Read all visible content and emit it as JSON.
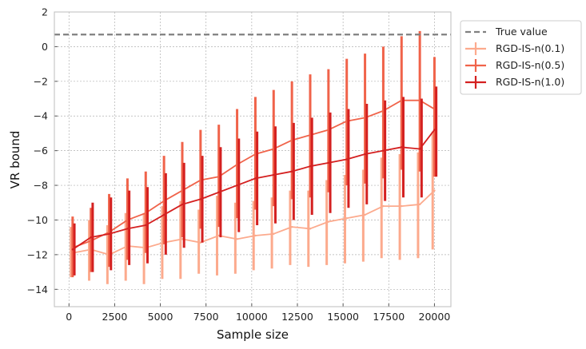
{
  "chart_data": {
    "type": "line",
    "title": "",
    "xlabel": "Sample size",
    "ylabel": "VR bound",
    "xlim": [
      -800,
      20900
    ],
    "ylim": [
      -15,
      2
    ],
    "xticks": [
      0,
      2500,
      5000,
      7500,
      10000,
      12500,
      15000,
      17500,
      20000
    ],
    "xtick_labels": [
      "0",
      "2500",
      "5000",
      "7500",
      "10000",
      "12500",
      "15000",
      "17500",
      "20000"
    ],
    "yticks": [
      -14,
      -12,
      -10,
      -8,
      -6,
      -4,
      -2,
      0,
      2
    ],
    "ytick_labels": [
      "−14",
      "−12",
      "−10",
      "−8",
      "−6",
      "−4",
      "−2",
      "0",
      "2"
    ],
    "grid": true,
    "legend_position": "outside-top-right",
    "reference_line": {
      "name": "True value",
      "y": 0.7,
      "color": "#808080",
      "style": "dashed"
    },
    "x": [
      200,
      1200,
      2200,
      3200,
      4200,
      5200,
      6200,
      7200,
      8200,
      9200,
      10200,
      11200,
      12200,
      13200,
      14200,
      15200,
      16200,
      17200,
      18200,
      19200,
      20000
    ],
    "series": [
      {
        "name": "RGD-IS-n(0.1)",
        "color": "#fcaa8d",
        "values": [
          -11.9,
          -11.7,
          -12.0,
          -11.5,
          -11.6,
          -11.3,
          -11.1,
          -11.3,
          -10.9,
          -11.1,
          -10.9,
          -10.8,
          -10.4,
          -10.5,
          -10.1,
          -9.9,
          -9.7,
          -9.2,
          -9.2,
          -9.1,
          -8.3
        ],
        "lower": [
          -13.3,
          -13.5,
          -13.7,
          -13.5,
          -13.7,
          -13.4,
          -13.4,
          -13.1,
          -13.2,
          -13.1,
          -12.9,
          -12.8,
          -12.6,
          -12.7,
          -12.6,
          -12.5,
          -12.4,
          -12.2,
          -12.3,
          -12.2,
          -11.7
        ],
        "upper": [
          -10.4,
          -10.0,
          -10.3,
          -9.6,
          -9.6,
          -9.2,
          -8.9,
          -9.4,
          -8.6,
          -9.0,
          -8.9,
          -8.7,
          -8.3,
          -8.3,
          -7.7,
          -7.4,
          -7.1,
          -6.4,
          -6.2,
          -6.1,
          -4.9
        ]
      },
      {
        "name": "RGD-IS-n(0.5)",
        "color": "#f0634a",
        "values": [
          -11.6,
          -11.2,
          -10.7,
          -10.0,
          -9.6,
          -8.9,
          -8.3,
          -7.7,
          -7.5,
          -6.8,
          -6.2,
          -5.9,
          -5.4,
          -5.1,
          -4.8,
          -4.3,
          -4.1,
          -3.7,
          -3.1,
          -3.1,
          -3.6
        ],
        "lower": [
          -13.3,
          -13.0,
          -12.7,
          -12.3,
          -11.9,
          -11.4,
          -11.0,
          -10.5,
          -10.4,
          -9.9,
          -9.4,
          -9.2,
          -8.8,
          -8.7,
          -8.4,
          -8.0,
          -7.9,
          -7.6,
          -7.1,
          -7.2,
          -7.5
        ],
        "upper": [
          -9.8,
          -9.3,
          -8.5,
          -7.6,
          -7.2,
          -6.3,
          -5.5,
          -4.8,
          -4.5,
          -3.6,
          -2.9,
          -2.5,
          -2.0,
          -1.6,
          -1.3,
          -0.7,
          -0.4,
          0.0,
          0.6,
          0.9,
          -0.6
        ]
      },
      {
        "name": "RGD-IS-n(1.0)",
        "color": "#d42020",
        "values": [
          -11.7,
          -11.0,
          -10.8,
          -10.5,
          -10.3,
          -9.7,
          -9.1,
          -8.8,
          -8.4,
          -8.0,
          -7.6,
          -7.4,
          -7.2,
          -6.9,
          -6.7,
          -6.5,
          -6.2,
          -6.0,
          -5.8,
          -5.9,
          -4.8
        ],
        "lower": [
          -13.2,
          -13.0,
          -12.9,
          -12.6,
          -12.5,
          -12.0,
          -11.6,
          -11.3,
          -11.0,
          -10.7,
          -10.3,
          -10.2,
          -10.0,
          -9.7,
          -9.6,
          -9.3,
          -9.1,
          -8.9,
          -8.7,
          -8.7,
          -7.5
        ],
        "upper": [
          -10.2,
          -9.0,
          -8.7,
          -8.3,
          -8.1,
          -7.3,
          -6.7,
          -6.3,
          -5.8,
          -5.3,
          -4.9,
          -4.6,
          -4.4,
          -4.1,
          -3.8,
          -3.6,
          -3.3,
          -3.1,
          -2.9,
          -3.0,
          -2.3
        ]
      }
    ]
  }
}
